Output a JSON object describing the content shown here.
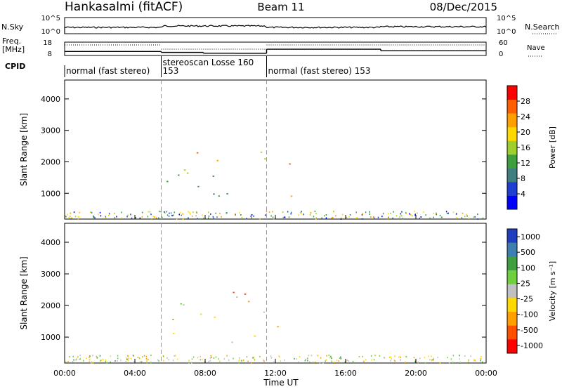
{
  "header": {
    "station": "Hankasalmi (fitACF)",
    "beam": "Beam 11",
    "date": "08/Dec/2015"
  },
  "strips": {
    "nsky_label": "N.Sky",
    "nsearch_label": "N.Search",
    "nsky_ticks": [
      "10^5",
      "10^0"
    ],
    "nsearch_ticks": [
      "10^5",
      "10^0"
    ],
    "freq_label_top": "Freq.",
    "freq_label_bottom": "[MHz]",
    "freq_ticks": [
      "18",
      "8"
    ],
    "nave_label": "Nave",
    "nave_ticks": [
      "60",
      "0"
    ],
    "cpid_label": "CPID",
    "cpid_segments": [
      {
        "label": "normal (fast stereo)",
        "start": 0,
        "end": 5.5
      },
      {
        "label": "153",
        "start": 5.5,
        "end": 5.5
      },
      {
        "label": "stereoscan Losse 160",
        "start": 5.5,
        "end": 11.5
      },
      {
        "label": "normal (fast stereo) 153",
        "start": 11.5,
        "end": 24
      }
    ],
    "freq_steps": [
      {
        "start": 0,
        "end": 5.5,
        "freq": 11
      },
      {
        "start": 5.5,
        "end": 7.9,
        "freq": 10.3
      },
      {
        "start": 7.9,
        "end": 9.7,
        "freq": 9.7
      },
      {
        "start": 9.7,
        "end": 11.5,
        "freq": 9.6
      },
      {
        "start": 11.5,
        "end": 18.0,
        "freq": 12.7
      },
      {
        "start": 18.0,
        "end": 24,
        "freq": 11.5
      }
    ]
  },
  "chart_data": [
    {
      "type": "heatmap",
      "panel": "power",
      "ylabel": "Slant Range [km]",
      "xlabel": "Time UT",
      "xlim": [
        0,
        24
      ],
      "ylim": [
        180,
        4600
      ],
      "xticks": [
        "00:00",
        "04:00",
        "08:00",
        "12:00",
        "16:00",
        "20:00",
        "00:00"
      ],
      "yticks": [
        "1000",
        "2000",
        "3000",
        "4000"
      ],
      "colorbar": {
        "label": "Power [dB]",
        "ticks": [
          "4",
          "8",
          "12",
          "16",
          "20",
          "24",
          "28"
        ],
        "colors": [
          "#0000ff",
          "#1f3fd0",
          "#3f7f7f",
          "#3f9f3f",
          "#9fcf2f",
          "#ffd800",
          "#ff9f00",
          "#ff5f00",
          "#ff0000"
        ]
      },
      "regions": [
        {
          "t0": 5.5,
          "t1": 11.5,
          "r0": 850,
          "r1": 2400,
          "level": 0.45
        },
        {
          "t0": 7.5,
          "t1": 11.3,
          "r0": 1800,
          "r1": 2400,
          "level": 0.65
        },
        {
          "t0": 11.5,
          "t1": 13.0,
          "r0": 900,
          "r1": 2300,
          "level": 0.85
        },
        {
          "t0": 0.0,
          "t1": 1.2,
          "r0": 250,
          "r1": 650,
          "level": 0.55
        },
        {
          "t0": 19.5,
          "t1": 21.0,
          "r0": 400,
          "r1": 650,
          "level": 0.5
        }
      ]
    },
    {
      "type": "heatmap",
      "panel": "velocity",
      "ylabel": "Slant Range [km]",
      "xlabel": "Time UT",
      "xlim": [
        0,
        24
      ],
      "ylim": [
        180,
        4600
      ],
      "xticks": [
        "00:00",
        "04:00",
        "08:00",
        "12:00",
        "16:00",
        "20:00",
        "00:00"
      ],
      "yticks": [
        "1000",
        "2000",
        "3000",
        "4000"
      ],
      "colorbar": {
        "label": "Velocity [m s⁻¹]",
        "ticks": [
          "1000",
          "500",
          "100",
          "25",
          "-25",
          "-100",
          "-500",
          "-1000"
        ],
        "colors": [
          "#1f3fbf",
          "#3f7faf",
          "#3f9f3f",
          "#6fcf3f",
          "#c0c0c0",
          "#ffd800",
          "#ffa000",
          "#ff5000",
          "#ff0000"
        ]
      },
      "regions": [
        {
          "t0": 5.5,
          "t1": 11.5,
          "r0": 850,
          "r1": 2400,
          "level": 0.0
        },
        {
          "t0": 7.5,
          "t1": 11.3,
          "r0": 1900,
          "r1": 2500,
          "level": -0.6
        },
        {
          "t0": 11.5,
          "t1": 12.8,
          "r0": 900,
          "r1": 1600,
          "level": -0.7
        },
        {
          "t0": 0.5,
          "t1": 1.5,
          "r0": 400,
          "r1": 700,
          "level": -0.8
        }
      ]
    }
  ],
  "xaxis_title": "Time UT"
}
